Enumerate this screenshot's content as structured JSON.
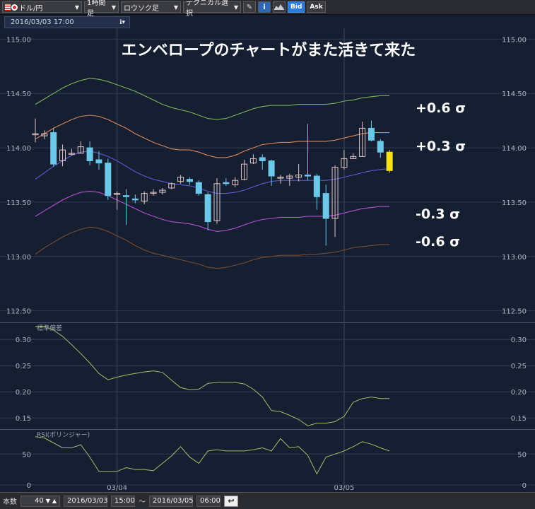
{
  "toolbar": {
    "pair": "ドル/円",
    "timeframe": "1時間足",
    "chart_style": "ロウソク足",
    "technical": "テクニカル選択",
    "bid": "Bid",
    "ask": "Ask"
  },
  "cursor_datetime": "2016/03/03 17:00",
  "annotations": {
    "title": "エンベロープのチャートがまた活きて来た",
    "p06": "+0.6 σ",
    "p03": "+0.3 σ",
    "m03": "-0.3 σ",
    "m06": "-0.6 σ"
  },
  "bottom": {
    "count_label": "本数",
    "count_value": "40",
    "from_date": "2016/03/03",
    "from_time": "15:00",
    "tilde": "〜",
    "to_date": "2016/03/05",
    "to_time": "06:00"
  },
  "colors": {
    "bg": "#161f32",
    "bull": "#dfc4c4",
    "bear": "#6cc7e8",
    "current": "#f4e11c",
    "env_p06": "#79b35c",
    "env_p03": "#d9855a",
    "mid": "#5a5ad6",
    "env_m03": "#b44fd6",
    "env_m06": "#7a4a30",
    "sub_line": "#9dbf6a"
  },
  "chart_data": [
    {
      "type": "candlestick",
      "title": "",
      "ylim": [
        112.4,
        115.1
      ],
      "yticks": [
        "115.00",
        "114.50",
        "114.00",
        "113.50",
        "113.00",
        "112.50"
      ],
      "x_dates": [
        "03/04",
        "03/05"
      ],
      "candles": [
        [
          114.12,
          114.13,
          114.27,
          114.05
        ],
        [
          114.11,
          114.13,
          114.16,
          114.08
        ],
        [
          114.14,
          113.85,
          114.18,
          113.83
        ],
        [
          113.88,
          113.98,
          114.03,
          113.83
        ],
        [
          113.95,
          113.95,
          113.99,
          113.93
        ],
        [
          113.95,
          114.01,
          114.06,
          113.95
        ],
        [
          114.0,
          113.88,
          114.06,
          113.84
        ],
        [
          113.89,
          113.86,
          113.97,
          113.8
        ],
        [
          113.86,
          113.56,
          113.9,
          113.52
        ],
        [
          113.58,
          113.58,
          113.6,
          113.43
        ],
        [
          113.56,
          113.55,
          113.62,
          113.29
        ],
        [
          113.53,
          113.52,
          113.57,
          113.49
        ],
        [
          113.51,
          113.58,
          113.6,
          113.48
        ],
        [
          113.58,
          113.59,
          113.62,
          113.56
        ],
        [
          113.59,
          113.61,
          113.63,
          113.57
        ],
        [
          113.63,
          113.67,
          113.68,
          113.62
        ],
        [
          113.69,
          113.73,
          113.75,
          113.67
        ],
        [
          113.71,
          113.69,
          113.73,
          113.66
        ],
        [
          113.68,
          113.58,
          113.7,
          113.56
        ],
        [
          113.57,
          113.32,
          113.59,
          113.24
        ],
        [
          113.33,
          113.67,
          113.72,
          113.3
        ],
        [
          113.68,
          113.67,
          113.72,
          113.65
        ],
        [
          113.66,
          113.7,
          113.73,
          113.64
        ],
        [
          113.71,
          113.85,
          113.89,
          113.7
        ],
        [
          113.86,
          113.9,
          113.94,
          113.85
        ],
        [
          113.91,
          113.88,
          113.94,
          113.8
        ],
        [
          113.88,
          113.74,
          113.89,
          113.65
        ],
        [
          113.73,
          113.73,
          113.75,
          113.67
        ],
        [
          113.72,
          113.74,
          113.76,
          113.65
        ],
        [
          113.73,
          113.75,
          113.85,
          113.69
        ],
        [
          113.75,
          113.74,
          114.22,
          113.7
        ],
        [
          113.74,
          113.55,
          113.76,
          113.43
        ],
        [
          113.58,
          113.35,
          113.66,
          113.1
        ],
        [
          113.35,
          113.82,
          113.84,
          113.18
        ],
        [
          113.82,
          113.9,
          113.98,
          113.8
        ],
        [
          113.9,
          113.92,
          113.95,
          113.9
        ],
        [
          113.92,
          114.18,
          114.24,
          113.92
        ],
        [
          114.18,
          114.07,
          114.25,
          114.06
        ],
        [
          114.06,
          113.96,
          114.08,
          113.91
        ],
        [
          113.96,
          113.79,
          113.98,
          113.77
        ]
      ],
      "envelopes": {
        "p06": [
          114.4,
          114.45,
          114.5,
          114.55,
          114.59,
          114.62,
          114.64,
          114.63,
          114.61,
          114.58,
          114.55,
          114.52,
          114.48,
          114.44,
          114.4,
          114.37,
          114.35,
          114.33,
          114.3,
          114.27,
          114.26,
          114.27,
          114.3,
          114.33,
          114.36,
          114.38,
          114.39,
          114.39,
          114.39,
          114.4,
          114.4,
          114.4,
          114.4,
          114.41,
          114.43,
          114.44,
          114.46,
          114.47,
          114.48,
          114.48
        ],
        "p03": [
          114.08,
          114.13,
          114.18,
          114.22,
          114.26,
          114.29,
          114.3,
          114.29,
          114.26,
          114.22,
          114.18,
          114.13,
          114.09,
          114.05,
          114.02,
          113.99,
          113.98,
          113.98,
          113.96,
          113.93,
          113.91,
          113.91,
          113.93,
          113.97,
          114.0,
          114.03,
          114.04,
          114.05,
          114.05,
          114.06,
          114.06,
          114.06,
          114.06,
          114.07,
          114.09,
          114.11,
          114.13,
          114.14,
          114.14,
          114.14
        ],
        "mid": [
          113.71,
          113.77,
          113.83,
          113.88,
          113.93,
          113.96,
          113.97,
          113.95,
          113.92,
          113.88,
          113.83,
          113.78,
          113.74,
          113.71,
          113.69,
          113.67,
          113.66,
          113.65,
          113.63,
          113.6,
          113.58,
          113.58,
          113.59,
          113.61,
          113.64,
          113.67,
          113.69,
          113.7,
          113.7,
          113.7,
          113.7,
          113.7,
          113.7,
          113.71,
          113.73,
          113.75,
          113.77,
          113.79,
          113.8,
          113.81
        ],
        "m03": [
          113.37,
          113.42,
          113.47,
          113.52,
          113.56,
          113.59,
          113.6,
          113.59,
          113.56,
          113.52,
          113.48,
          113.44,
          113.4,
          113.37,
          113.34,
          113.32,
          113.31,
          113.3,
          113.28,
          113.25,
          113.23,
          113.24,
          113.26,
          113.29,
          113.32,
          113.34,
          113.35,
          113.36,
          113.36,
          113.36,
          113.37,
          113.37,
          113.37,
          113.38,
          113.4,
          113.42,
          113.44,
          113.45,
          113.46,
          113.46
        ],
        "m06": [
          113.02,
          113.08,
          113.13,
          113.18,
          113.22,
          113.25,
          113.27,
          113.26,
          113.23,
          113.19,
          113.15,
          113.1,
          113.06,
          113.03,
          113.01,
          112.99,
          112.97,
          112.95,
          112.93,
          112.9,
          112.89,
          112.9,
          112.92,
          112.94,
          112.97,
          112.99,
          113.0,
          113.01,
          113.01,
          113.01,
          113.02,
          113.02,
          113.03,
          113.04,
          113.06,
          113.08,
          113.09,
          113.1,
          113.11,
          113.11
        ]
      }
    },
    {
      "type": "line",
      "title": "標準偏差",
      "ylim": [
        0.13,
        0.33
      ],
      "yticks": [
        "0.30",
        "0.25",
        "0.20",
        "0.15"
      ],
      "values": [
        0.325,
        0.325,
        0.318,
        0.306,
        0.29,
        0.273,
        0.255,
        0.235,
        0.223,
        0.228,
        0.232,
        0.235,
        0.238,
        0.24,
        0.237,
        0.222,
        0.208,
        0.204,
        0.205,
        0.216,
        0.218,
        0.218,
        0.218,
        0.215,
        0.205,
        0.19,
        0.164,
        0.162,
        0.155,
        0.147,
        0.135,
        0.14,
        0.14,
        0.143,
        0.153,
        0.18,
        0.187,
        0.19,
        0.187,
        0.187
      ]
    },
    {
      "type": "line",
      "title": "RSI(ボリンジャー)",
      "ylim": [
        -8,
        88
      ],
      "yticks": [
        "50",
        "0"
      ],
      "values": [
        78,
        76,
        68,
        60,
        60,
        65,
        45,
        22,
        22,
        22,
        28,
        25,
        25,
        23,
        35,
        47,
        62,
        45,
        35,
        55,
        57,
        55,
        55,
        55,
        57,
        60,
        55,
        75,
        60,
        62,
        48,
        18,
        45,
        50,
        55,
        62,
        70,
        66,
        60,
        55
      ]
    }
  ]
}
